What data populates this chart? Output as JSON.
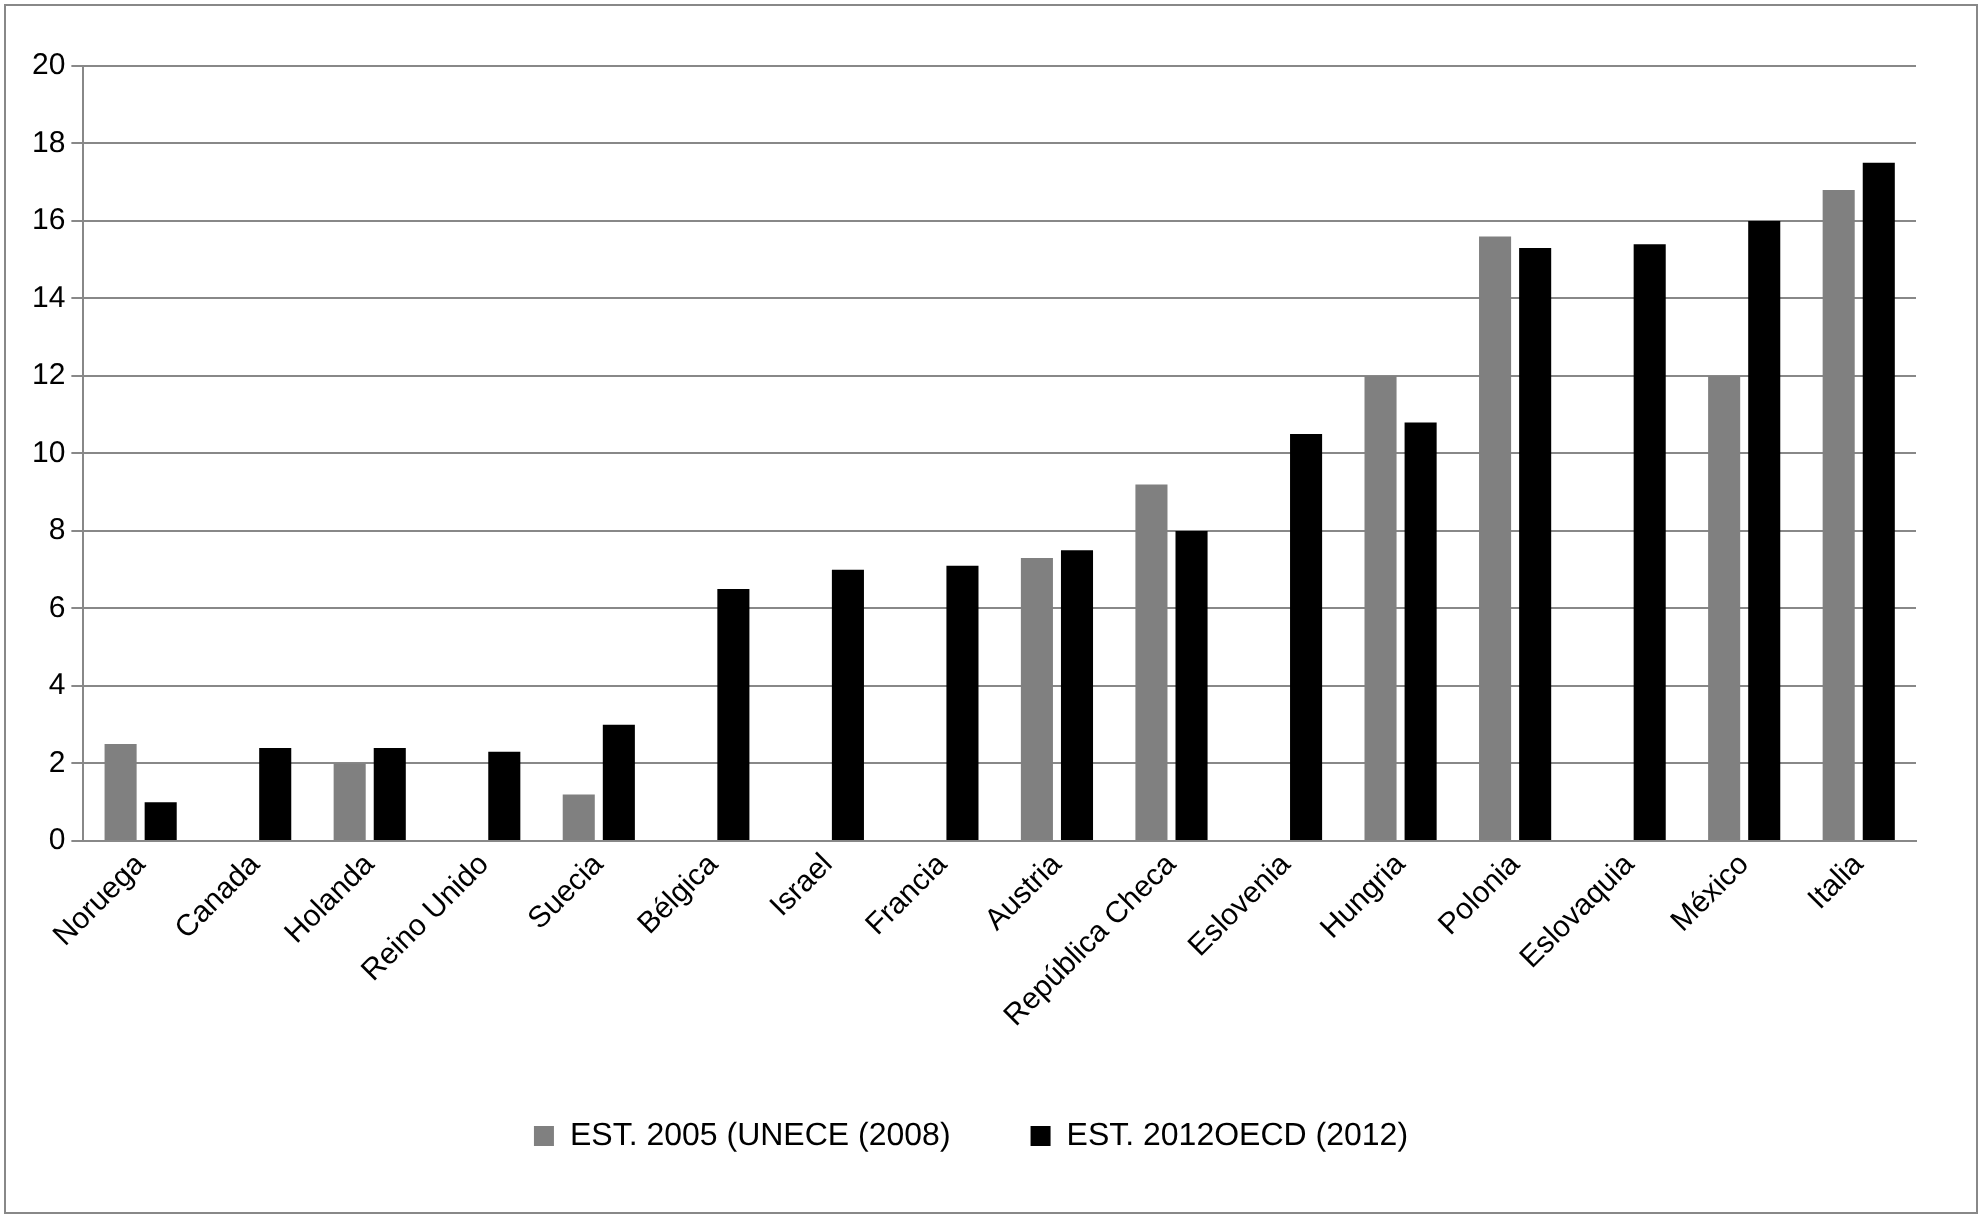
{
  "chart_data": {
    "type": "bar",
    "categories": [
      "Noruega",
      "Canada",
      "Holanda",
      "Reino Unido",
      "Suecia",
      "Bélgica",
      "Israel",
      "Francia",
      "Austria",
      "República Checa",
      "Eslovenia",
      "Hungria",
      "Polonia",
      "Eslovaquia",
      "México",
      "Italia"
    ],
    "series": [
      {
        "name": "EST. 2005 (UNECE (2008)",
        "color": "#808080",
        "values": [
          2.5,
          null,
          2.0,
          null,
          1.2,
          null,
          null,
          null,
          7.3,
          9.2,
          null,
          12.0,
          15.6,
          null,
          12.0,
          16.8
        ]
      },
      {
        "name": "EST. 2012OECD (2012)",
        "color": "#000000",
        "values": [
          1.0,
          2.4,
          2.4,
          2.3,
          3.0,
          6.5,
          7.0,
          7.1,
          7.5,
          8.0,
          10.5,
          10.8,
          15.3,
          15.4,
          16.0,
          17.5
        ]
      }
    ],
    "ylim": [
      0,
      20
    ],
    "yticks": [
      0,
      2,
      4,
      6,
      8,
      10,
      12,
      14,
      16,
      18,
      20
    ],
    "grid": "y",
    "legend": "bottom"
  }
}
